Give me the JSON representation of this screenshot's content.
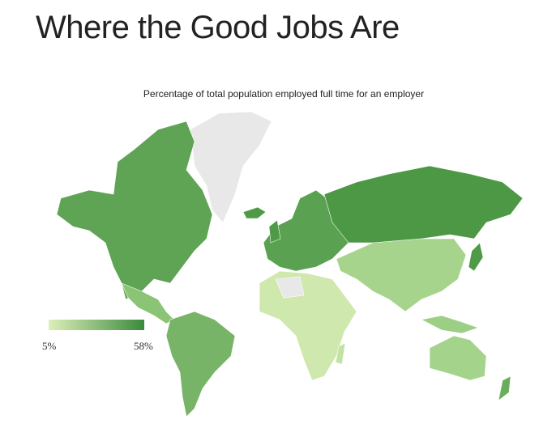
{
  "header": {
    "title": "Where the Good Jobs Are",
    "subtitle": "Percentage of total population employed full time for an employer"
  },
  "legend": {
    "min": {
      "value": 5,
      "label": "5%"
    },
    "max": {
      "value": 58,
      "label": "58%"
    },
    "colors": [
      "#dcefb8",
      "#3b8a3c"
    ]
  }
}
